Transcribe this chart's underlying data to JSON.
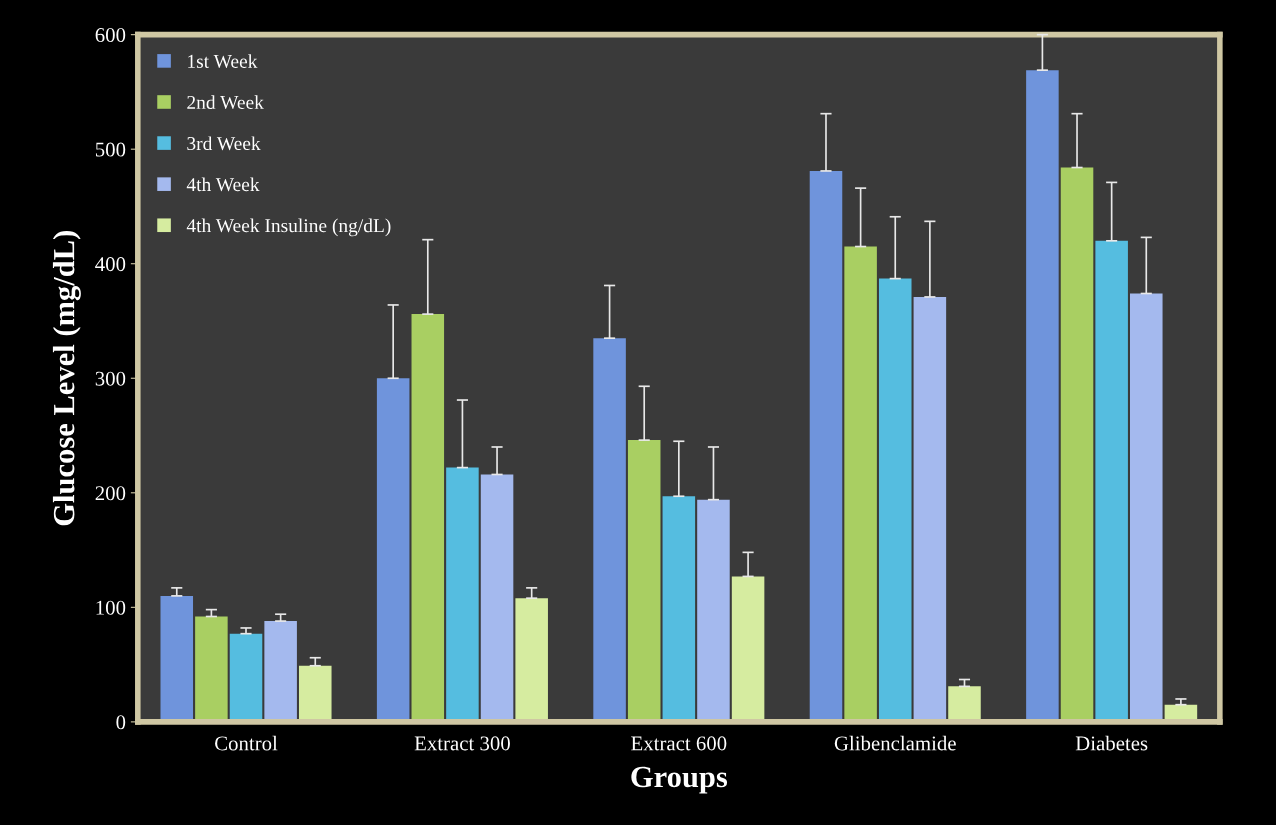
{
  "chart_data": {
    "type": "bar",
    "xlabel": "Groups",
    "ylabel": "Glucose Level (mg/dL)",
    "categories": [
      "Control",
      "Extract 300",
      "Extract 600",
      "Glibenclamide",
      "Diabetes"
    ],
    "series": [
      {
        "name": "1st Week",
        "color": "#6f94dc",
        "values": [
          110,
          300,
          335,
          481,
          569
        ],
        "errors": [
          [
            110,
            117
          ],
          [
            300,
            364
          ],
          [
            335,
            381
          ],
          [
            481,
            531
          ],
          [
            569,
            600
          ]
        ]
      },
      {
        "name": "2nd Week",
        "color": "#a9cf62",
        "values": [
          92,
          356,
          246,
          415,
          484
        ],
        "errors": [
          [
            92,
            98
          ],
          [
            356,
            421
          ],
          [
            246,
            293
          ],
          [
            415,
            466
          ],
          [
            484,
            531
          ]
        ]
      },
      {
        "name": "3rd Week",
        "color": "#55bde0",
        "values": [
          77,
          222,
          197,
          387,
          420
        ],
        "errors": [
          [
            77,
            82
          ],
          [
            222,
            281
          ],
          [
            197,
            245
          ],
          [
            387,
            441
          ],
          [
            420,
            471
          ]
        ]
      },
      {
        "name": "4th Week",
        "color": "#a4b9ee",
        "values": [
          88,
          216,
          194,
          371,
          374
        ],
        "errors": [
          [
            88,
            94
          ],
          [
            216,
            240
          ],
          [
            194,
            240
          ],
          [
            371,
            437
          ],
          [
            374,
            423
          ]
        ]
      },
      {
        "name": "4th Week Insuline (ng/dL)",
        "color": "#d6eca0",
        "values": [
          49,
          108,
          127,
          31,
          15
        ],
        "errors": [
          [
            49,
            56
          ],
          [
            108,
            117
          ],
          [
            127,
            148
          ],
          [
            31,
            37
          ],
          [
            15,
            20
          ]
        ]
      }
    ],
    "ylim": [
      0,
      600
    ],
    "yticks": [
      0,
      100,
      200,
      300,
      400,
      500,
      600
    ],
    "grid": false,
    "legend": "top left"
  }
}
